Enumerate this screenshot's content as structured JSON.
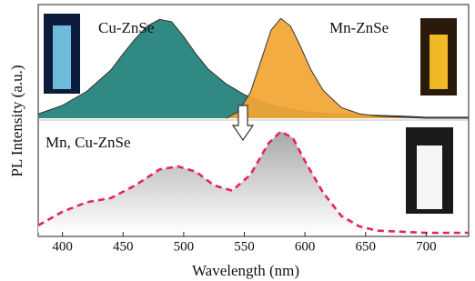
{
  "chart_data": [
    {
      "type": "area",
      "series": [
        {
          "name": "Cu-ZnSe",
          "color": "#1f7f78",
          "x": [
            380,
            400,
            420,
            440,
            450,
            460,
            470,
            480,
            490,
            500,
            510,
            520,
            535,
            550,
            565,
            580,
            600,
            625,
            650,
            680,
            700,
            735
          ],
          "values": [
            0.04,
            0.12,
            0.25,
            0.45,
            0.6,
            0.74,
            0.86,
            0.92,
            0.9,
            0.76,
            0.6,
            0.46,
            0.32,
            0.22,
            0.15,
            0.1,
            0.06,
            0.04,
            0.03,
            0.02,
            0.01,
            0.01
          ]
        },
        {
          "name": "Mn-ZnSe",
          "color": "#f2a532",
          "x": [
            535,
            545,
            555,
            565,
            572,
            580,
            588,
            595,
            605,
            615,
            630,
            645,
            660,
            680,
            700,
            735
          ],
          "values": [
            0.0,
            0.06,
            0.24,
            0.58,
            0.82,
            0.93,
            0.86,
            0.7,
            0.45,
            0.26,
            0.1,
            0.04,
            0.02,
            0.01,
            0.0,
            0.0
          ]
        }
      ],
      "xlim": [
        380,
        735
      ],
      "ylim": [
        0,
        1
      ]
    },
    {
      "type": "line",
      "series": [
        {
          "name": "Mn, Cu-ZnSe",
          "color": "#e3265a",
          "x": [
            380,
            400,
            420,
            440,
            460,
            480,
            495,
            510,
            525,
            540,
            555,
            570,
            580,
            590,
            600,
            615,
            630,
            645,
            660,
            680,
            700,
            735
          ],
          "values": [
            0.07,
            0.2,
            0.29,
            0.33,
            0.45,
            0.6,
            0.63,
            0.58,
            0.45,
            0.4,
            0.55,
            0.85,
            0.96,
            0.9,
            0.68,
            0.38,
            0.16,
            0.06,
            0.02,
            0.01,
            0.0,
            0.0
          ]
        }
      ],
      "xlim": [
        380,
        735
      ],
      "ylim": [
        0,
        1
      ],
      "xticks": [
        400,
        450,
        500,
        550,
        600,
        650,
        700
      ],
      "x_label": "Wavelength (nm)",
      "y_label": "PL Intensity (a.u.)"
    }
  ]
}
